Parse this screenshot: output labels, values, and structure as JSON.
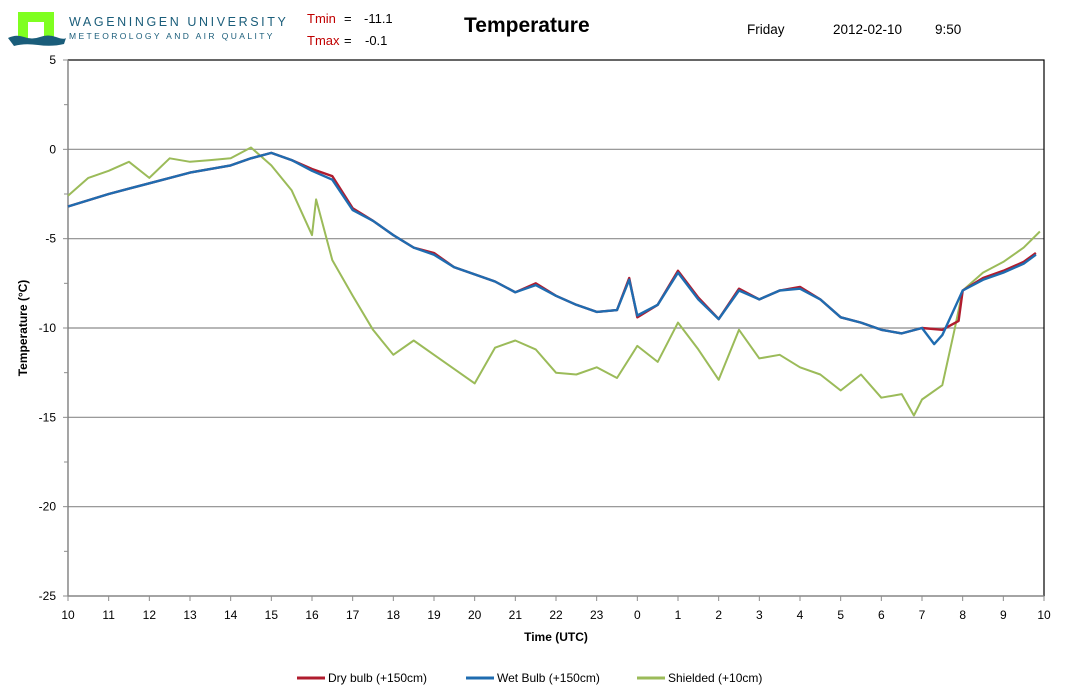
{
  "header": {
    "university": "WAGENINGEN UNIVERSITY",
    "department": "METEOROLOGY AND AIR QUALITY",
    "tmin_label": "Tmin",
    "tmin_value": "-11.1",
    "tmax_label": "Tmax",
    "tmax_value": "-0.1",
    "equals": "=",
    "day": "Friday",
    "date": "2012-02-10",
    "time": "9:50"
  },
  "colors": {
    "dry_bulb": "#b01c2e",
    "wet_bulb": "#1f6cb0",
    "shielded": "#9bbb59",
    "logo_green": "#7fff20",
    "logo_blue": "#1a5d7a",
    "stat_label": "#c00000"
  },
  "chart_data": {
    "type": "line",
    "title": "Temperature",
    "xlabel": "Time (UTC)",
    "ylabel": "Temperature (°C)",
    "ylim": [
      -25,
      5
    ],
    "yticks": [
      5,
      0,
      -5,
      -10,
      -15,
      -20,
      -25
    ],
    "xlim": [
      0,
      24
    ],
    "xtick_labels": [
      "10",
      "11",
      "12",
      "13",
      "14",
      "15",
      "16",
      "17",
      "18",
      "19",
      "20",
      "21",
      "22",
      "23",
      "0",
      "1",
      "2",
      "3",
      "4",
      "5",
      "6",
      "7",
      "8",
      "9",
      "10"
    ],
    "grid": "horizontal major",
    "legend": "bottom-center",
    "x_unit_note": "hours since 10 UTC on previous day",
    "series": [
      {
        "name": "Dry bulb (+150cm)",
        "color_key": "dry_bulb",
        "x": [
          0,
          1,
          2,
          3,
          4,
          4.5,
          5,
          5.5,
          6,
          6.5,
          7,
          7.5,
          8,
          8.5,
          9,
          9.5,
          10,
          10.5,
          11,
          11.5,
          12,
          12.5,
          13,
          13.5,
          13.8,
          14,
          14.5,
          15,
          15.5,
          16,
          16.5,
          17,
          17.5,
          18,
          18.5,
          19,
          19.5,
          20,
          20.5,
          21,
          21.5,
          21.9,
          22,
          22.5,
          23,
          23.5,
          23.8
        ],
        "values": [
          -3.2,
          -2.5,
          -1.9,
          -1.3,
          -0.9,
          -0.5,
          -0.2,
          -0.6,
          -1.1,
          -1.5,
          -3.3,
          -4.0,
          -4.8,
          -5.5,
          -5.8,
          -6.6,
          -7.0,
          -7.4,
          -8.0,
          -7.5,
          -8.2,
          -8.7,
          -9.1,
          -9.0,
          -7.2,
          -9.4,
          -8.7,
          -6.8,
          -8.3,
          -9.5,
          -7.8,
          -8.4,
          -7.9,
          -7.7,
          -8.4,
          -9.4,
          -9.7,
          -10.1,
          -10.3,
          -10.0,
          -10.1,
          -9.6,
          -7.9,
          -7.2,
          -6.8,
          -6.3,
          -5.8
        ]
      },
      {
        "name": "Wet Bulb (+150cm)",
        "color_key": "wet_bulb",
        "x": [
          0,
          1,
          2,
          3,
          4,
          4.5,
          5,
          5.5,
          6,
          6.5,
          7,
          7.5,
          8,
          8.5,
          9,
          9.5,
          10,
          10.5,
          11,
          11.5,
          12,
          12.5,
          13,
          13.5,
          13.8,
          14,
          14.5,
          15,
          15.5,
          16,
          16.5,
          17,
          17.5,
          18,
          18.5,
          19,
          19.5,
          20,
          20.5,
          21,
          21.3,
          21.5,
          22,
          22.5,
          23,
          23.5,
          23.8
        ],
        "values": [
          -3.2,
          -2.5,
          -1.9,
          -1.3,
          -0.9,
          -0.5,
          -0.2,
          -0.6,
          -1.2,
          -1.7,
          -3.4,
          -4.0,
          -4.8,
          -5.5,
          -5.9,
          -6.6,
          -7.0,
          -7.4,
          -8.0,
          -7.6,
          -8.2,
          -8.7,
          -9.1,
          -9.0,
          -7.3,
          -9.3,
          -8.7,
          -6.9,
          -8.4,
          -9.5,
          -7.9,
          -8.4,
          -7.9,
          -7.8,
          -8.4,
          -9.4,
          -9.7,
          -10.1,
          -10.3,
          -10.0,
          -10.9,
          -10.4,
          -7.9,
          -7.3,
          -6.9,
          -6.4,
          -5.9
        ]
      },
      {
        "name": "Shielded (+10cm)",
        "color_key": "shielded",
        "x": [
          0,
          0.5,
          1,
          1.5,
          2,
          2.5,
          3,
          3.5,
          4,
          4.5,
          5,
          5.5,
          6,
          6.1,
          6.5,
          7,
          7.5,
          8,
          8.5,
          9,
          9.5,
          10,
          10.5,
          11,
          11.5,
          12,
          12.5,
          13,
          13.5,
          14,
          14.5,
          15,
          15.5,
          16,
          16.5,
          17,
          17.5,
          18,
          18.5,
          19,
          19.5,
          20,
          20.5,
          20.8,
          21,
          21.5,
          21.8,
          22,
          22.5,
          23,
          23.5,
          23.9
        ],
        "values": [
          -2.6,
          -1.6,
          -1.2,
          -0.7,
          -1.6,
          -0.5,
          -0.7,
          -0.6,
          -0.5,
          0.1,
          -0.9,
          -2.3,
          -4.8,
          -2.8,
          -6.2,
          -8.2,
          -10.1,
          -11.5,
          -10.7,
          -11.5,
          -12.3,
          -13.1,
          -11.1,
          -10.7,
          -11.2,
          -12.5,
          -12.6,
          -12.2,
          -12.8,
          -11.0,
          -11.9,
          -9.7,
          -11.2,
          -12.9,
          -10.1,
          -11.7,
          -11.5,
          -12.2,
          -12.6,
          -13.5,
          -12.6,
          -13.9,
          -13.7,
          -14.9,
          -14.0,
          -13.2,
          -10.1,
          -7.9,
          -6.9,
          -6.3,
          -5.5,
          -4.6
        ]
      }
    ]
  }
}
